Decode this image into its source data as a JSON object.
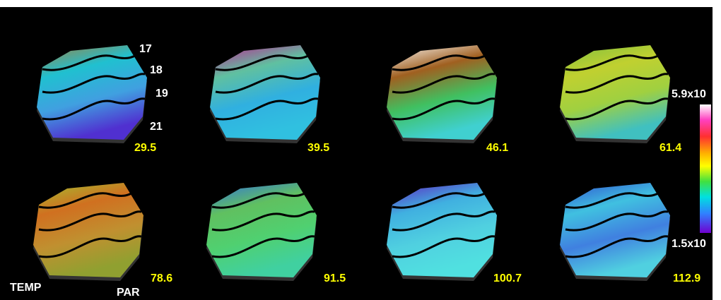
{
  "panels": [
    {
      "label": "29.5"
    },
    {
      "label": "39.5"
    },
    {
      "label": "46.1"
    },
    {
      "label": "61.4"
    },
    {
      "label": "78.6"
    },
    {
      "label": "91.5"
    },
    {
      "label": "100.7"
    },
    {
      "label": "112.9"
    }
  ],
  "electrodes": [
    "17",
    "18",
    "19",
    "21"
  ],
  "colorbar": {
    "max_label": "5.9x10",
    "min_label": "1.5x10"
  },
  "orientation": {
    "left": "TEMP",
    "right": "PAR"
  }
}
